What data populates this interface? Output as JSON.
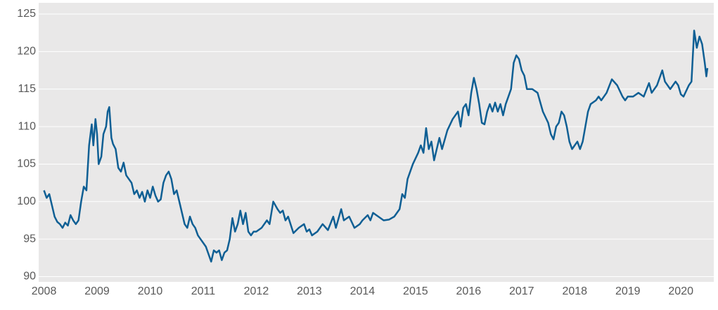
{
  "chart_data": {
    "type": "line",
    "x": [
      2008.0,
      2008.05,
      2008.1,
      2008.15,
      2008.2,
      2008.25,
      2008.3,
      2008.35,
      2008.4,
      2008.45,
      2008.5,
      2008.55,
      2008.6,
      2008.65,
      2008.7,
      2008.75,
      2008.8,
      2008.85,
      2008.9,
      2008.93,
      2008.97,
      2009.0,
      2009.03,
      2009.08,
      2009.12,
      2009.17,
      2009.2,
      2009.23,
      2009.27,
      2009.3,
      2009.35,
      2009.4,
      2009.45,
      2009.5,
      2009.55,
      2009.6,
      2009.65,
      2009.7,
      2009.75,
      2009.8,
      2009.85,
      2009.9,
      2009.95,
      2010.0,
      2010.05,
      2010.1,
      2010.15,
      2010.2,
      2010.25,
      2010.3,
      2010.35,
      2010.4,
      2010.45,
      2010.5,
      2010.55,
      2010.6,
      2010.65,
      2010.7,
      2010.75,
      2010.8,
      2010.85,
      2010.9,
      2010.95,
      2011.0,
      2011.05,
      2011.1,
      2011.15,
      2011.2,
      2011.25,
      2011.3,
      2011.35,
      2011.4,
      2011.45,
      2011.5,
      2011.55,
      2011.6,
      2011.65,
      2011.7,
      2011.75,
      2011.8,
      2011.85,
      2011.9,
      2011.95,
      2012.0,
      2012.1,
      2012.2,
      2012.25,
      2012.32,
      2012.4,
      2012.45,
      2012.5,
      2012.55,
      2012.6,
      2012.7,
      2012.8,
      2012.9,
      2012.95,
      2013.0,
      2013.05,
      2013.15,
      2013.25,
      2013.35,
      2013.45,
      2013.5,
      2013.6,
      2013.65,
      2013.75,
      2013.85,
      2013.95,
      2014.0,
      2014.1,
      2014.15,
      2014.2,
      2014.3,
      2014.4,
      2014.5,
      2014.6,
      2014.7,
      2014.75,
      2014.8,
      2014.85,
      2014.95,
      2015.05,
      2015.1,
      2015.15,
      2015.2,
      2015.25,
      2015.3,
      2015.35,
      2015.45,
      2015.5,
      2015.6,
      2015.7,
      2015.8,
      2015.85,
      2015.9,
      2015.95,
      2016.0,
      2016.05,
      2016.1,
      2016.15,
      2016.2,
      2016.25,
      2016.3,
      2016.35,
      2016.4,
      2016.45,
      2016.5,
      2016.55,
      2016.6,
      2016.65,
      2016.7,
      2016.75,
      2016.8,
      2016.85,
      2016.9,
      2016.95,
      2017.0,
      2017.05,
      2017.1,
      2017.2,
      2017.3,
      2017.4,
      2017.5,
      2017.55,
      2017.6,
      2017.65,
      2017.7,
      2017.75,
      2017.8,
      2017.85,
      2017.9,
      2017.95,
      2018.0,
      2018.05,
      2018.1,
      2018.15,
      2018.2,
      2018.25,
      2018.3,
      2018.4,
      2018.45,
      2018.5,
      2018.6,
      2018.7,
      2018.8,
      2018.9,
      2018.95,
      2019.0,
      2019.1,
      2019.2,
      2019.3,
      2019.4,
      2019.45,
      2019.55,
      2019.65,
      2019.7,
      2019.8,
      2019.9,
      2019.95,
      2020.0,
      2020.05,
      2020.15,
      2020.2,
      2020.25,
      2020.3,
      2020.35,
      2020.4,
      2020.45,
      2020.48,
      2020.5
    ],
    "values": [
      101.5,
      100.5,
      101,
      99.5,
      98,
      97.3,
      97,
      96.5,
      97.2,
      96.8,
      98.2,
      97.5,
      97,
      97.5,
      100,
      102,
      101.5,
      107.5,
      110.3,
      107.5,
      111,
      109,
      105,
      106,
      109,
      110,
      112,
      112.6,
      108.5,
      107.7,
      107,
      104.5,
      104,
      105.2,
      103.5,
      103,
      102.5,
      101,
      101.5,
      100.5,
      101.3,
      100,
      101.5,
      100.5,
      102,
      100.8,
      100,
      100.3,
      102.5,
      103.5,
      104,
      103,
      101,
      101.5,
      100,
      98.5,
      97,
      96.5,
      98,
      97,
      96.5,
      95.5,
      95,
      94.5,
      94,
      93,
      92,
      93.5,
      93.2,
      93.5,
      92.2,
      93.2,
      93.5,
      95,
      97.8,
      96,
      97,
      98.8,
      97,
      98.5,
      96,
      95.5,
      96,
      96,
      96.5,
      97.5,
      97,
      100,
      99,
      98.5,
      98.8,
      97.5,
      98,
      95.8,
      96.5,
      97,
      96,
      96.3,
      95.5,
      96,
      97,
      96.2,
      98,
      96.5,
      99,
      97.5,
      98,
      96.5,
      97,
      97.5,
      98.2,
      97.5,
      98.5,
      98,
      97.5,
      97.6,
      98,
      99,
      101,
      100.5,
      103,
      105,
      106.5,
      107.5,
      106.5,
      109.8,
      107,
      108,
      105.5,
      108.5,
      107,
      109.5,
      111,
      112,
      110,
      112.5,
      113,
      111.5,
      114.5,
      116.5,
      115,
      113,
      110.5,
      110.3,
      112,
      113,
      112,
      113.2,
      112,
      113,
      111.5,
      113,
      114,
      115,
      118.5,
      119.5,
      119,
      117.5,
      116.8,
      115,
      115,
      114.5,
      112,
      110.5,
      109,
      108.3,
      110,
      110.5,
      112,
      111.5,
      110,
      108,
      107,
      107.5,
      108,
      107,
      108,
      110,
      112,
      113,
      113.5,
      114,
      113.5,
      114.5,
      116.3,
      115.5,
      114,
      113.5,
      114,
      114,
      114.5,
      114,
      115.8,
      114.5,
      115.5,
      117.5,
      116,
      115,
      116,
      115.5,
      114.3,
      114,
      115.5,
      116,
      122.8,
      120.5,
      122,
      121,
      118.5,
      116.7,
      117.8
    ],
    "color": "#0f5f94",
    "xlim": [
      2007.9,
      2020.62
    ],
    "xticks": [
      2008,
      2009,
      2010,
      2011,
      2012,
      2013,
      2014,
      2015,
      2016,
      2017,
      2018,
      2019,
      2020
    ],
    "ylim": [
      89.3,
      126.5
    ],
    "yticks": [
      90,
      95,
      100,
      105,
      110,
      115,
      120,
      125
    ],
    "grid": true
  }
}
